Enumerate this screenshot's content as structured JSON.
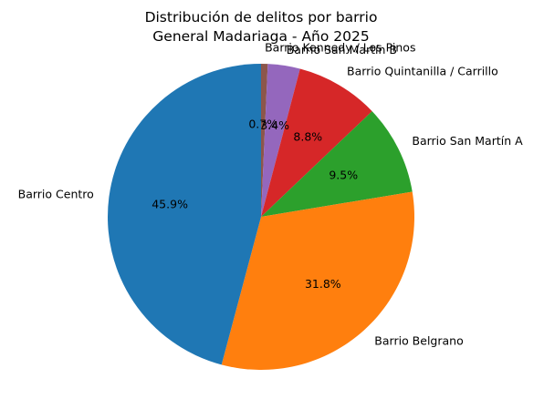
{
  "chart_data": {
    "type": "pie",
    "title": "Distribución de delitos por barrio",
    "subtitle": "General Madariaga - Año 2025",
    "start_angle_deg": 90,
    "direction": "clockwise",
    "legend": "none",
    "slices": [
      {
        "label": "Barrio Kennedy / Los Pinos",
        "value": 0.7,
        "pct_label": "0.7%",
        "color": "#8c564b"
      },
      {
        "label": "Barrio San Martín B",
        "value": 3.4,
        "pct_label": "3.4%",
        "color": "#9467bd"
      },
      {
        "label": "Barrio Quintanilla / Carrillo",
        "value": 8.8,
        "pct_label": "8.8%",
        "color": "#d62728"
      },
      {
        "label": "Barrio San Martín A",
        "value": 9.5,
        "pct_label": "9.5%",
        "color": "#2ca02c"
      },
      {
        "label": "Barrio Belgrano",
        "value": 31.8,
        "pct_label": "31.8%",
        "color": "#ff7f0e"
      },
      {
        "label": "Barrio Centro",
        "value": 45.9,
        "pct_label": "45.9%",
        "color": "#1f77b4"
      }
    ]
  }
}
